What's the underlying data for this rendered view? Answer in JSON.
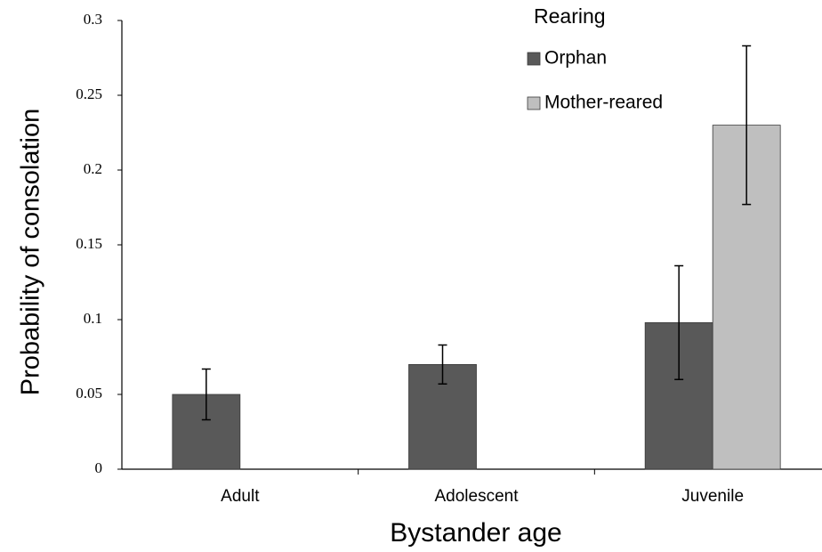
{
  "chart_data": {
    "type": "bar",
    "y_label": "Probability of consolation",
    "x_label": "Bystander age",
    "legend_title": "Rearing",
    "legend_position": "upper right",
    "categories": [
      "Adult",
      "Adolescent",
      "Juvenile"
    ],
    "series": [
      {
        "name": "Orphan",
        "color": "#595959",
        "values": [
          0.05,
          0.07,
          0.098
        ],
        "errors": [
          0.017,
          0.013,
          0.038
        ]
      },
      {
        "name": "Mother-reared",
        "color": "#bfbfbf",
        "values": [
          null,
          null,
          0.23
        ],
        "errors": [
          null,
          null,
          0.053
        ]
      }
    ],
    "ylim": [
      0,
      0.3
    ],
    "yticks": [
      0,
      0.05,
      0.1,
      0.15,
      0.2,
      0.25,
      0.3
    ],
    "grid": false
  }
}
